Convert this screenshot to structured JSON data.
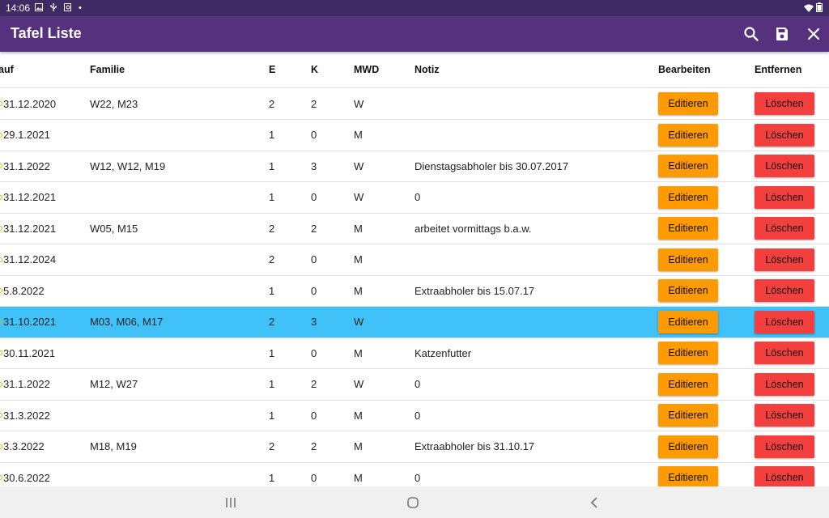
{
  "status_bar": {
    "time": "14:06"
  },
  "app_bar": {
    "title": "Tafel Liste",
    "icons": [
      "search-icon",
      "save-icon",
      "close-icon"
    ]
  },
  "table": {
    "headers": {
      "lauf": "auf",
      "familie": "Familie",
      "e": "E",
      "k": "K",
      "mwd": "MWD",
      "notiz": "Notiz",
      "bearbeiten": "Bearbeiten",
      "entfernen": "Entfernen"
    },
    "edit_label": "Editieren",
    "delete_label": "Löschen",
    "selected_row_index": 7,
    "rows": [
      {
        "lauf": "31.12.2020",
        "familie": "W22, M23",
        "e": "2",
        "k": "2",
        "mwd": "W",
        "notiz": ""
      },
      {
        "lauf": "29.1.2021",
        "familie": "",
        "e": "1",
        "k": "0",
        "mwd": "M",
        "notiz": ""
      },
      {
        "lauf": "31.1.2022",
        "familie": "W12, W12, M19",
        "e": "1",
        "k": "3",
        "mwd": "W",
        "notiz": "Dienstagsabholer bis 30.07.2017"
      },
      {
        "lauf": "31.12.2021",
        "familie": "",
        "e": "1",
        "k": "0",
        "mwd": "W",
        "notiz": "0"
      },
      {
        "lauf": "31.12.2021",
        "familie": "W05, M15",
        "e": "2",
        "k": "2",
        "mwd": "M",
        "notiz": "arbeitet vormittags b.a.w."
      },
      {
        "lauf": "31.12.2024",
        "familie": "",
        "e": "2",
        "k": "0",
        "mwd": "M",
        "notiz": ""
      },
      {
        "lauf": "5.8.2022",
        "familie": "",
        "e": "1",
        "k": "0",
        "mwd": "M",
        "notiz": "Extraabholer bis 15.07.17"
      },
      {
        "lauf": "31.10.2021",
        "familie": "M03, M06, M17",
        "e": "2",
        "k": "3",
        "mwd": "W",
        "notiz": ""
      },
      {
        "lauf": "30.11.2021",
        "familie": "",
        "e": "1",
        "k": "0",
        "mwd": "M",
        "notiz": "Katzenfutter"
      },
      {
        "lauf": "31.1.2022",
        "familie": "M12, W27",
        "e": "1",
        "k": "2",
        "mwd": "W",
        "notiz": "0"
      },
      {
        "lauf": "31.3.2022",
        "familie": "",
        "e": "1",
        "k": "0",
        "mwd": "M",
        "notiz": "0"
      },
      {
        "lauf": "3.3.2022",
        "familie": "M18, M19",
        "e": "2",
        "k": "2",
        "mwd": "M",
        "notiz": "Extraabholer bis 31.10.17"
      },
      {
        "lauf": "30.6.2022",
        "familie": "",
        "e": "1",
        "k": "0",
        "mwd": "M",
        "notiz": "0"
      }
    ]
  },
  "colors": {
    "status_bar": "#3f2a63",
    "app_bar": "#55317e",
    "selected_row": "#40c1f8",
    "edit_button": "#ff9a00",
    "delete_button": "#f43f3f"
  }
}
